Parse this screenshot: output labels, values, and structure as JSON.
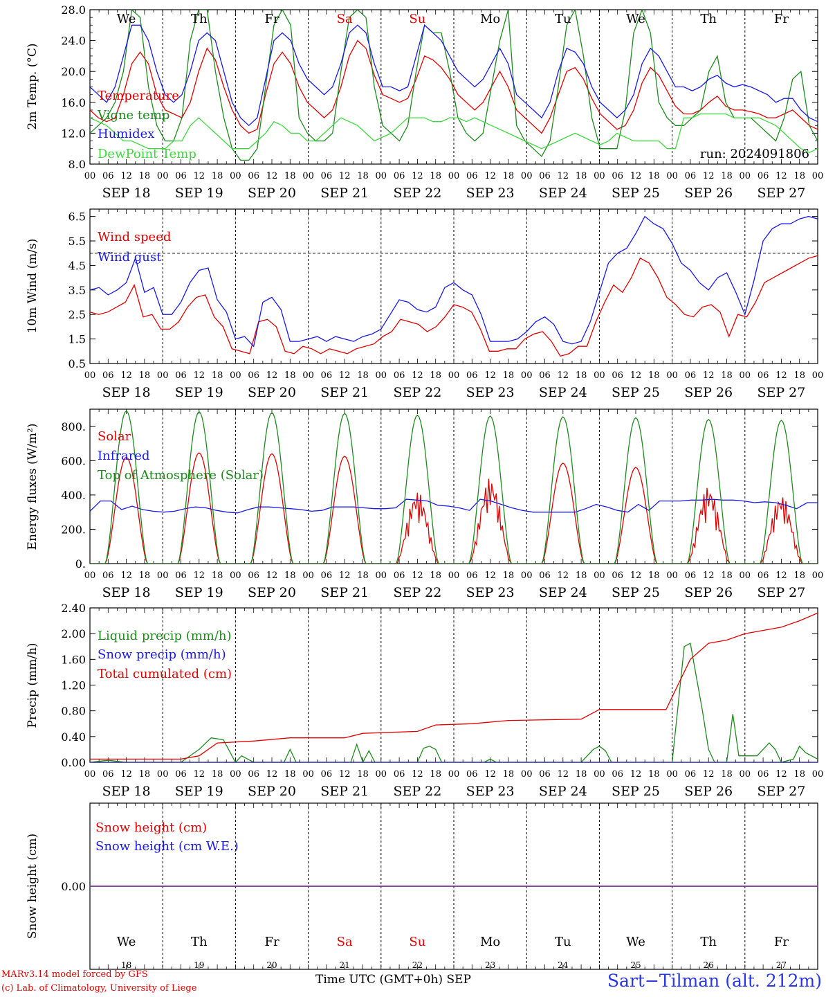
{
  "colors": {
    "red": "#e00000",
    "dark_green": "#1e8a1e",
    "blue": "#1a1ae6",
    "light_green": "#3ed83e",
    "purple": "#7a2ca0",
    "site_blue": "#2a36e8"
  },
  "days": {
    "dates": [
      "SEP 18",
      "SEP 19",
      "SEP 20",
      "SEP 21",
      "SEP 22",
      "SEP 23",
      "SEP 24",
      "SEP 25",
      "SEP 26",
      "SEP 27"
    ],
    "weekdays": [
      "We",
      "Th",
      "Fr",
      "Sa",
      "Su",
      "Mo",
      "Tu",
      "We",
      "Th",
      "Fr"
    ],
    "weekday_colors": [
      "#000000",
      "#000000",
      "#000000",
      "#e00000",
      "#e00000",
      "#000000",
      "#000000",
      "#000000",
      "#000000",
      "#000000"
    ],
    "day_numbers": [
      "18",
      "19",
      "20",
      "21",
      "22",
      "23",
      "24",
      "25",
      "26",
      "27"
    ],
    "hour_labels": [
      "00",
      "06",
      "12",
      "18"
    ],
    "final_hour": "00"
  },
  "footer": {
    "credit_1": "MARv3.14 model forced by GFS",
    "credit_2": "(c) Lab. of Climatology, University of Liege",
    "time_axis": "Time UTC (GMT+0h) SEP",
    "site": "Sart−Tilman (alt. 212m)"
  },
  "chart_data": [
    {
      "type": "line",
      "ylabel": "2m Temp. (°C)",
      "ylim": [
        8,
        28
      ],
      "yticks": [
        8,
        12,
        16,
        20,
        24,
        28
      ],
      "ytick_labels": [
        "8.0",
        "12.0",
        "16.0",
        "20.0",
        "24.0",
        "28.0"
      ],
      "annotation": "run: 2024091806",
      "series": [
        {
          "name": "Temperature",
          "color": "#e00000",
          "values": [
            15,
            14,
            13.5,
            14,
            17,
            21,
            22.5,
            21,
            17,
            15,
            14.5,
            14,
            16,
            20,
            23,
            21.5,
            18,
            15,
            13,
            12,
            12.5,
            17,
            21,
            22.5,
            21,
            18,
            16,
            15,
            14,
            15,
            18,
            22,
            24,
            23,
            19.5,
            17,
            16.5,
            16,
            16.5,
            19,
            22,
            21.5,
            20.5,
            19,
            17,
            16,
            15,
            16,
            18,
            20,
            18,
            15,
            14,
            13,
            12,
            14,
            17,
            20,
            20.5,
            19,
            16.5,
            14.5,
            13.5,
            12.5,
            13,
            15,
            18.5,
            20.5,
            19.5,
            17.5,
            15.5,
            14.5,
            14.5,
            15,
            16,
            16.8,
            15.5,
            15,
            15,
            14.8,
            14.5,
            14,
            14,
            14.5,
            15,
            14,
            13,
            12.5
          ]
        },
        {
          "name": "Vigne temp",
          "color": "#1e8a1e",
          "values": [
            12,
            13,
            14,
            16,
            20,
            28,
            27,
            18,
            13,
            11,
            11,
            14,
            24,
            28,
            28,
            20,
            14,
            10,
            8.5,
            8.5,
            10,
            18,
            26,
            28,
            26,
            14,
            12,
            11,
            11,
            12,
            20,
            27,
            28,
            27,
            18,
            13,
            12,
            11,
            13,
            20,
            26,
            25,
            25,
            20,
            14,
            12,
            11,
            12,
            18,
            24,
            28,
            13,
            11,
            10,
            9,
            11,
            18,
            26,
            28,
            22,
            14,
            10,
            10,
            10,
            15,
            25,
            28,
            25,
            16,
            14,
            13,
            13,
            14,
            15,
            20,
            22,
            16,
            14,
            14,
            14,
            13,
            12,
            11,
            14,
            19,
            20,
            13,
            11
          ]
        },
        {
          "name": "Humidex",
          "color": "#1a1ae6",
          "values": [
            18,
            17,
            16,
            18,
            22,
            26,
            26,
            24,
            20,
            17,
            16,
            17,
            20,
            24,
            25,
            24,
            20,
            16,
            14,
            13,
            14,
            19,
            24,
            25,
            24,
            21,
            19,
            18,
            17,
            18,
            21,
            25,
            26,
            25,
            21,
            18,
            18,
            17.5,
            18,
            22,
            26,
            25,
            24,
            22,
            20,
            19,
            18,
            19,
            21,
            23,
            21,
            17,
            16,
            15,
            14,
            16,
            20,
            23,
            22.5,
            21,
            18,
            16,
            15,
            14,
            15,
            17,
            21,
            23,
            22,
            20,
            18,
            18,
            17.5,
            18,
            19,
            19.5,
            18.5,
            18,
            18.3,
            18,
            17.5,
            17,
            16,
            16.5,
            16.5,
            15,
            14,
            13.5
          ]
        },
        {
          "name": "DewPoint Temp",
          "color": "#3ed83e",
          "values": [
            14,
            13.5,
            13,
            12,
            11,
            11,
            10.5,
            10,
            10,
            10,
            11,
            11,
            13,
            14,
            13,
            12,
            11,
            10,
            10,
            10,
            11,
            12,
            13.5,
            13,
            12,
            12,
            11,
            11,
            12,
            13,
            14,
            13.5,
            13,
            12,
            11,
            11.5,
            12,
            13,
            14,
            14,
            14,
            13.5,
            13.5,
            14,
            14,
            13.5,
            14,
            13.5,
            13,
            12.5,
            12,
            11.5,
            11,
            10.5,
            10,
            10.5,
            11,
            11.5,
            12,
            11.5,
            11,
            10.5,
            11,
            12,
            11.5,
            11,
            11,
            11,
            11,
            10,
            10,
            14,
            14,
            14.5,
            14.5,
            14.5,
            14.5,
            14,
            14,
            14,
            14,
            13.5,
            13,
            12,
            11,
            10,
            9.5,
            10
          ]
        }
      ]
    },
    {
      "type": "line",
      "ylabel": "10m Wind (m/s)",
      "ylim": [
        0.5,
        6.8
      ],
      "yticks": [
        0.5,
        1.5,
        2.5,
        3.5,
        4.5,
        5.5,
        6.5
      ],
      "ytick_labels": [
        "0.5",
        "1.5",
        "2.5",
        "3.5",
        "4.5",
        "5.5",
        "6.5"
      ],
      "reference_line": 5,
      "series": [
        {
          "name": "Wind speed",
          "color": "#e00000",
          "values": [
            2.6,
            2.5,
            2.6,
            2.8,
            3,
            3.7,
            2.4,
            2.5,
            1.9,
            1.9,
            2.2,
            2.8,
            3.2,
            3.3,
            2.4,
            2,
            1.1,
            1,
            0.9,
            2.2,
            2.3,
            2,
            1,
            0.9,
            1.2,
            1.1,
            0.9,
            1.1,
            1,
            0.9,
            1.1,
            1.2,
            1.3,
            1.6,
            1.8,
            2.3,
            2.2,
            2.1,
            1.8,
            2,
            2.4,
            2.9,
            2.8,
            2.6,
            1.9,
            1,
            1,
            1.1,
            1.1,
            1.5,
            1.7,
            1.8,
            1.4,
            0.8,
            0.9,
            1.2,
            1.2,
            2.2,
            3,
            3.7,
            3.4,
            4,
            4.8,
            4.6,
            4,
            3.2,
            2.9,
            2.5,
            2.4,
            2.8,
            2.9,
            2.6,
            1.6,
            2.5,
            2.4,
            3,
            3.8,
            4,
            4.2,
            4.4,
            4.6,
            4.8,
            4.9
          ]
        },
        {
          "name": "Wind gust",
          "color": "#1a1ae6",
          "values": [
            3.5,
            3.6,
            3.3,
            3.5,
            3.8,
            4.8,
            3.4,
            3.6,
            2.5,
            2.5,
            3,
            3.8,
            4.3,
            4.4,
            3.1,
            2.6,
            1.5,
            1.6,
            1.2,
            3,
            3.2,
            2.7,
            1.4,
            1.4,
            1.5,
            1.6,
            1.4,
            1.6,
            1.5,
            1.4,
            1.6,
            1.7,
            1.9,
            2.5,
            3.1,
            3,
            2.7,
            2.6,
            2.8,
            3.6,
            3.8,
            3.5,
            3.3,
            2.5,
            1.4,
            1.4,
            1.4,
            1.5,
            1.8,
            2.2,
            2.4,
            2.1,
            1.4,
            1.3,
            1.4,
            2.2,
            3.4,
            4.6,
            5,
            5.2,
            5.8,
            6.5,
            6.2,
            6,
            5.4,
            4.6,
            4.3,
            3.8,
            3.5,
            4,
            4.2,
            3.4,
            2.5,
            3.9,
            5.5,
            6,
            6.2,
            6.2,
            6.4,
            6.5,
            6.4
          ]
        }
      ]
    },
    {
      "type": "line",
      "ylabel": "Energy fluxes (W/m²)",
      "ylim": [
        0,
        900
      ],
      "yticks": [
        0,
        200,
        400,
        600,
        800
      ],
      "ytick_labels": [
        "0.",
        "200.",
        "400.",
        "600.",
        "800."
      ],
      "series": [
        {
          "name": "Solar",
          "color": "#e00000",
          "daily_peaks": [
            620,
            645,
            640,
            625,
            420,
            500,
            585,
            560,
            450,
            400
          ]
        },
        {
          "name": "Infrared",
          "color": "#1a1ae6",
          "values": [
            305,
            365,
            365,
            315,
            335,
            315,
            305,
            300,
            305,
            320,
            330,
            325,
            310,
            300,
            295,
            315,
            330,
            330,
            325,
            320,
            315,
            305,
            310,
            330,
            330,
            330,
            325,
            320,
            320,
            325,
            375,
            370,
            365,
            340,
            335,
            325,
            310,
            375,
            365,
            345,
            325,
            310,
            300,
            300,
            300,
            300,
            300,
            320,
            345,
            330,
            310,
            300,
            345,
            310,
            365,
            365,
            365,
            370,
            370,
            375,
            370,
            370,
            365,
            355,
            360,
            355,
            340,
            320,
            355,
            355
          ]
        },
        {
          "name": "Top of Atmosphere (Solar)",
          "color": "#1e8a1e",
          "daily_peaks": [
            890,
            885,
            880,
            875,
            865,
            860,
            855,
            850,
            840,
            835
          ]
        }
      ]
    },
    {
      "type": "line",
      "ylabel": "Precip (mm/h)",
      "ylim": [
        0,
        2.4
      ],
      "yticks": [
        0,
        0.4,
        0.8,
        1.2,
        1.6,
        2.0,
        2.4
      ],
      "ytick_labels": [
        "0.00",
        "0.40",
        "0.80",
        "1.20",
        "1.60",
        "2.00",
        "2.40"
      ],
      "series": [
        {
          "name": "Liquid precip (mm/h)",
          "color": "#1e8a1e",
          "points": [
            [
              0,
              0
            ],
            [
              6,
              0.03
            ],
            [
              12,
              0
            ],
            [
              30,
              0
            ],
            [
              36,
              0.2
            ],
            [
              40,
              0.38
            ],
            [
              44,
              0.35
            ],
            [
              48,
              0
            ],
            [
              50,
              0.1
            ],
            [
              54,
              0
            ],
            [
              64,
              0
            ],
            [
              66,
              0.2
            ],
            [
              68,
              0
            ],
            [
              86,
              0
            ],
            [
              88,
              0.28
            ],
            [
              90,
              0
            ],
            [
              92,
              0.18
            ],
            [
              94,
              0
            ],
            [
              108,
              0
            ],
            [
              110,
              0.22
            ],
            [
              112,
              0.25
            ],
            [
              114,
              0.2
            ],
            [
              116,
              0
            ],
            [
              130,
              0
            ],
            [
              132,
              0.05
            ],
            [
              134,
              0
            ],
            [
              162,
              0
            ],
            [
              166,
              0.2
            ],
            [
              168,
              0.25
            ],
            [
              170,
              0.18
            ],
            [
              172,
              0
            ],
            [
              192,
              0
            ],
            [
              196,
              1.8
            ],
            [
              198,
              1.85
            ],
            [
              202,
              0.8
            ],
            [
              204,
              0.2
            ],
            [
              206,
              0
            ],
            [
              210,
              0
            ],
            [
              212,
              0.75
            ],
            [
              214,
              0.1
            ],
            [
              220,
              0.1
            ],
            [
              224,
              0.3
            ],
            [
              226,
              0.2
            ],
            [
              228,
              0
            ],
            [
              232,
              0.05
            ],
            [
              234,
              0.25
            ],
            [
              236,
              0.15
            ],
            [
              240,
              0.05
            ]
          ]
        },
        {
          "name": "Snow precip (mm/h)",
          "color": "#1a1ae6",
          "points": [
            [
              0,
              0
            ],
            [
              240,
              0
            ]
          ]
        },
        {
          "name": "Total cumulated (cm)",
          "color": "#e00000",
          "points": [
            [
              0,
              0.05
            ],
            [
              30,
              0.05
            ],
            [
              36,
              0.1
            ],
            [
              42,
              0.3
            ],
            [
              54,
              0.33
            ],
            [
              66,
              0.38
            ],
            [
              84,
              0.38
            ],
            [
              90,
              0.45
            ],
            [
              108,
              0.48
            ],
            [
              114,
              0.58
            ],
            [
              126,
              0.6
            ],
            [
              138,
              0.65
            ],
            [
              162,
              0.67
            ],
            [
              168,
              0.82
            ],
            [
              190,
              0.82
            ],
            [
              198,
              1.6
            ],
            [
              204,
              1.85
            ],
            [
              210,
              1.9
            ],
            [
              216,
              2.0
            ],
            [
              228,
              2.1
            ],
            [
              234,
              2.2
            ],
            [
              240,
              2.32
            ]
          ]
        }
      ]
    },
    {
      "type": "line",
      "ylabel": "Snow height (cm)",
      "ylim": [
        -1,
        1
      ],
      "yticks": [
        0
      ],
      "ytick_labels": [
        "0.00"
      ],
      "series": [
        {
          "name": "Snow height (cm)",
          "color": "#e00000",
          "points": [
            [
              0,
              0
            ],
            [
              240,
              0
            ]
          ]
        },
        {
          "name": "Snow height (cm W.E.)",
          "color": "#1a1ae6",
          "points": [
            [
              0,
              0
            ],
            [
              240,
              0
            ]
          ]
        }
      ]
    }
  ]
}
